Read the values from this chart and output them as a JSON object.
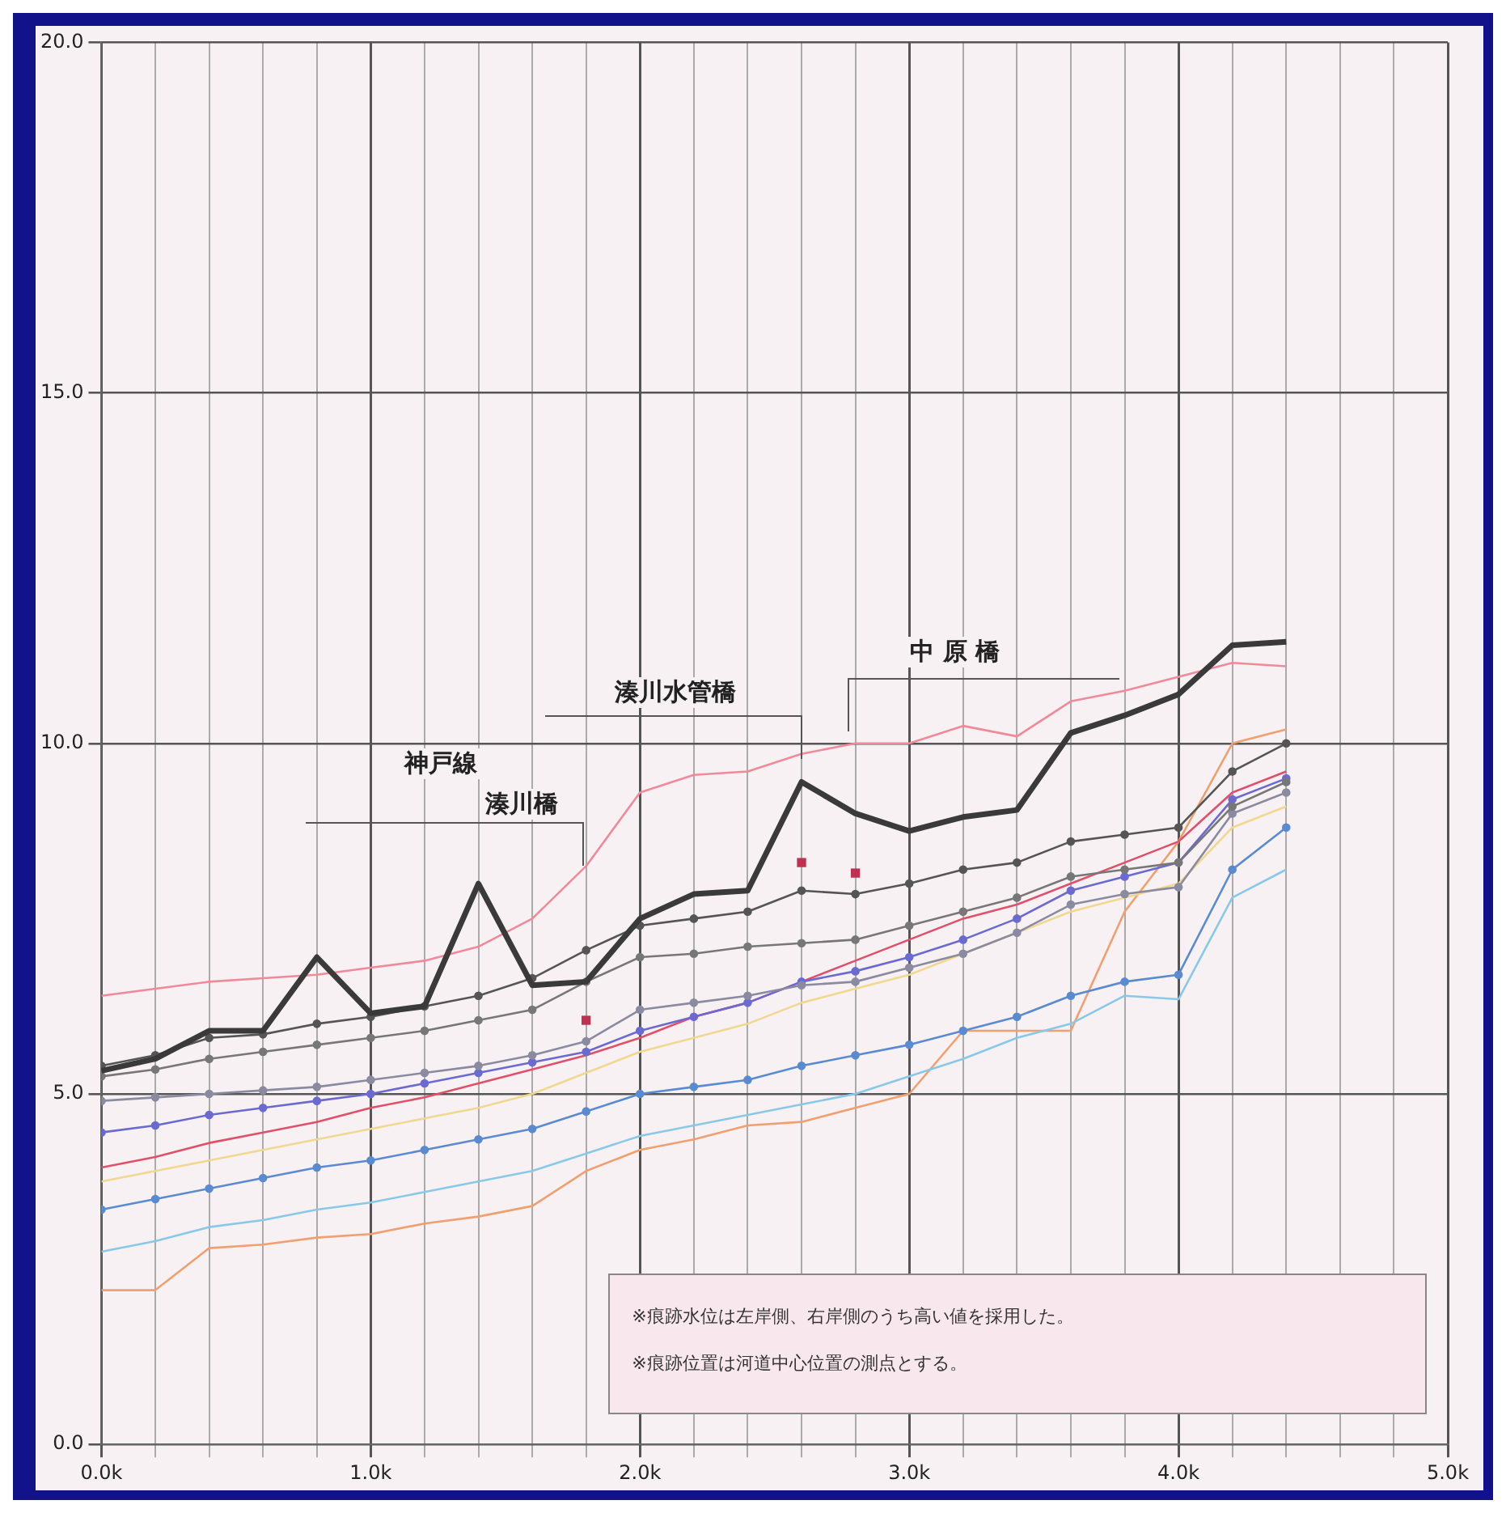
{
  "chart_data": {
    "type": "line",
    "x": [
      0,
      0.2,
      0.4,
      0.6,
      0.8,
      1.0,
      1.2,
      1.4,
      1.6,
      1.8,
      2.0,
      2.2,
      2.4,
      2.6,
      2.8,
      3.0,
      3.2,
      3.4,
      3.6,
      3.8,
      4.0,
      4.2,
      4.4
    ],
    "xlim": [
      0,
      5
    ],
    "xticks": [
      {
        "value": 0,
        "label": "0.0k"
      },
      {
        "value": 0.2,
        "label": null
      },
      {
        "value": 0.4,
        "label": null
      },
      {
        "value": 0.6,
        "label": null
      },
      {
        "value": 0.8,
        "label": null
      },
      {
        "value": 1,
        "label": "1.0k"
      },
      {
        "value": 1.2,
        "label": null
      },
      {
        "value": 1.4,
        "label": null
      },
      {
        "value": 1.6,
        "label": null
      },
      {
        "value": 1.8,
        "label": null
      },
      {
        "value": 2,
        "label": "2.0k"
      },
      {
        "value": 2.2,
        "label": null
      },
      {
        "value": 2.4,
        "label": null
      },
      {
        "value": 2.6,
        "label": null
      },
      {
        "value": 2.8,
        "label": null
      },
      {
        "value": 3,
        "label": "3.0k"
      },
      {
        "value": 3.2,
        "label": null
      },
      {
        "value": 3.4,
        "label": null
      },
      {
        "value": 3.6,
        "label": null
      },
      {
        "value": 3.8,
        "label": null
      },
      {
        "value": 4,
        "label": "4.0k"
      },
      {
        "value": 4.2,
        "label": null
      },
      {
        "value": 4.4,
        "label": null
      },
      {
        "value": 4.6,
        "label": null
      },
      {
        "value": 4.8,
        "label": null
      },
      {
        "value": 5,
        "label": "5.0k"
      }
    ],
    "ylim": [
      0,
      20
    ],
    "yticks": [
      {
        "value": 0,
        "label": "0.0"
      },
      {
        "value": 5,
        "label": "5.0"
      },
      {
        "value": 10,
        "label": "10.0"
      },
      {
        "value": 15,
        "label": "15.0"
      },
      {
        "value": 20,
        "label": "20.0"
      }
    ],
    "grid": true,
    "legend": false,
    "marker": "none",
    "line_style": "solid",
    "series": [
      {
        "color": "#3a3a3a",
        "values": [
          5.33,
          5.5,
          5.9,
          5.9,
          6.95,
          6.15,
          6.25,
          8.0,
          6.55,
          6.6,
          7.5,
          7.85,
          7.9,
          9.45,
          9.0,
          8.75,
          8.95,
          9.05,
          10.15,
          10.4,
          10.7,
          11.4,
          11.45
        ]
      },
      {
        "color": "#f08a9a",
        "values": [
          6.4,
          6.5,
          6.6,
          6.65,
          6.7,
          6.8,
          6.9,
          7.1,
          7.5,
          8.25,
          9.3,
          9.55,
          9.6,
          9.85,
          10.0,
          10.0,
          10.25,
          10.1,
          10.6,
          10.75,
          10.95,
          11.15,
          11.1
        ]
      },
      {
        "color": "#555555",
        "marker": "circle",
        "values": [
          5.4,
          5.55,
          5.8,
          5.85,
          6.0,
          6.1,
          6.25,
          6.4,
          6.65,
          7.05,
          7.4,
          7.5,
          7.6,
          7.9,
          7.85,
          8.0,
          8.2,
          8.3,
          8.6,
          8.7,
          8.8,
          9.6,
          10.0
        ]
      },
      {
        "color": "#777777",
        "marker": "circle",
        "values": [
          5.25,
          5.35,
          5.5,
          5.6,
          5.7,
          5.8,
          5.9,
          6.05,
          6.2,
          6.6,
          6.95,
          7.0,
          7.1,
          7.15,
          7.2,
          7.4,
          7.6,
          7.8,
          8.1,
          8.2,
          8.3,
          9.1,
          9.45
        ]
      },
      {
        "color": "#8a8aa0",
        "marker": "circle",
        "values": [
          4.9,
          4.95,
          5.0,
          5.05,
          5.1,
          5.2,
          5.3,
          5.4,
          5.55,
          5.75,
          6.2,
          6.3,
          6.4,
          6.55,
          6.6,
          6.8,
          7.0,
          7.3,
          7.7,
          7.85,
          7.95,
          9.0,
          9.3
        ]
      },
      {
        "color": "#6a6ad0",
        "marker": "circle",
        "values": [
          4.45,
          4.55,
          4.7,
          4.8,
          4.9,
          5.0,
          5.15,
          5.3,
          5.45,
          5.6,
          5.9,
          6.1,
          6.3,
          6.6,
          6.75,
          6.95,
          7.2,
          7.5,
          7.9,
          8.1,
          8.3,
          9.2,
          9.5
        ]
      },
      {
        "color": "#e0506a",
        "values": [
          3.95,
          4.1,
          4.3,
          4.45,
          4.6,
          4.8,
          4.95,
          5.15,
          5.35,
          5.55,
          5.8,
          6.1,
          6.3,
          6.6,
          6.9,
          7.2,
          7.5,
          7.7,
          8.0,
          8.3,
          8.6,
          9.3,
          9.6
        ]
      },
      {
        "color": "#f0d890",
        "values": [
          3.75,
          3.9,
          4.05,
          4.2,
          4.35,
          4.5,
          4.65,
          4.8,
          5.0,
          5.3,
          5.6,
          5.8,
          6.0,
          6.3,
          6.5,
          6.7,
          7.0,
          7.3,
          7.6,
          7.8,
          8.0,
          8.8,
          9.1
        ]
      },
      {
        "color": "#5a8ad0",
        "marker": "circle",
        "values": [
          3.35,
          3.5,
          3.65,
          3.8,
          3.95,
          4.05,
          4.2,
          4.35,
          4.5,
          4.75,
          5.0,
          5.1,
          5.2,
          5.4,
          5.55,
          5.7,
          5.9,
          6.1,
          6.4,
          6.6,
          6.7,
          8.2,
          8.8
        ]
      },
      {
        "color": "#8ac8e8",
        "values": [
          2.75,
          2.9,
          3.1,
          3.2,
          3.35,
          3.45,
          3.6,
          3.75,
          3.9,
          4.15,
          4.4,
          4.55,
          4.7,
          4.85,
          5.0,
          5.25,
          5.5,
          5.8,
          6.0,
          6.4,
          6.35,
          7.8,
          8.2
        ]
      },
      {
        "color": "#f0a070",
        "values": [
          2.2,
          2.2,
          2.8,
          2.85,
          2.95,
          3.0,
          3.15,
          3.25,
          3.4,
          3.9,
          4.2,
          4.35,
          4.55,
          4.6,
          4.8,
          5.0,
          5.9,
          5.9,
          5.9,
          7.6,
          8.6,
          10.0,
          10.2
        ]
      },
      {
        "type": "scatter",
        "color": "#c03050",
        "marker": "square",
        "x": [
          1.8,
          2.6,
          2.8
        ],
        "values": [
          6.05,
          8.3,
          8.15
        ]
      }
    ],
    "annotations": [
      "神戸線",
      "湊川橋",
      "湊川水管橋",
      "中 原 橋",
      "※痕跡水位は左岸側、右岸側のうち高い値を採用した。",
      "※痕跡位置は河道中心位置の測点とする。"
    ]
  }
}
